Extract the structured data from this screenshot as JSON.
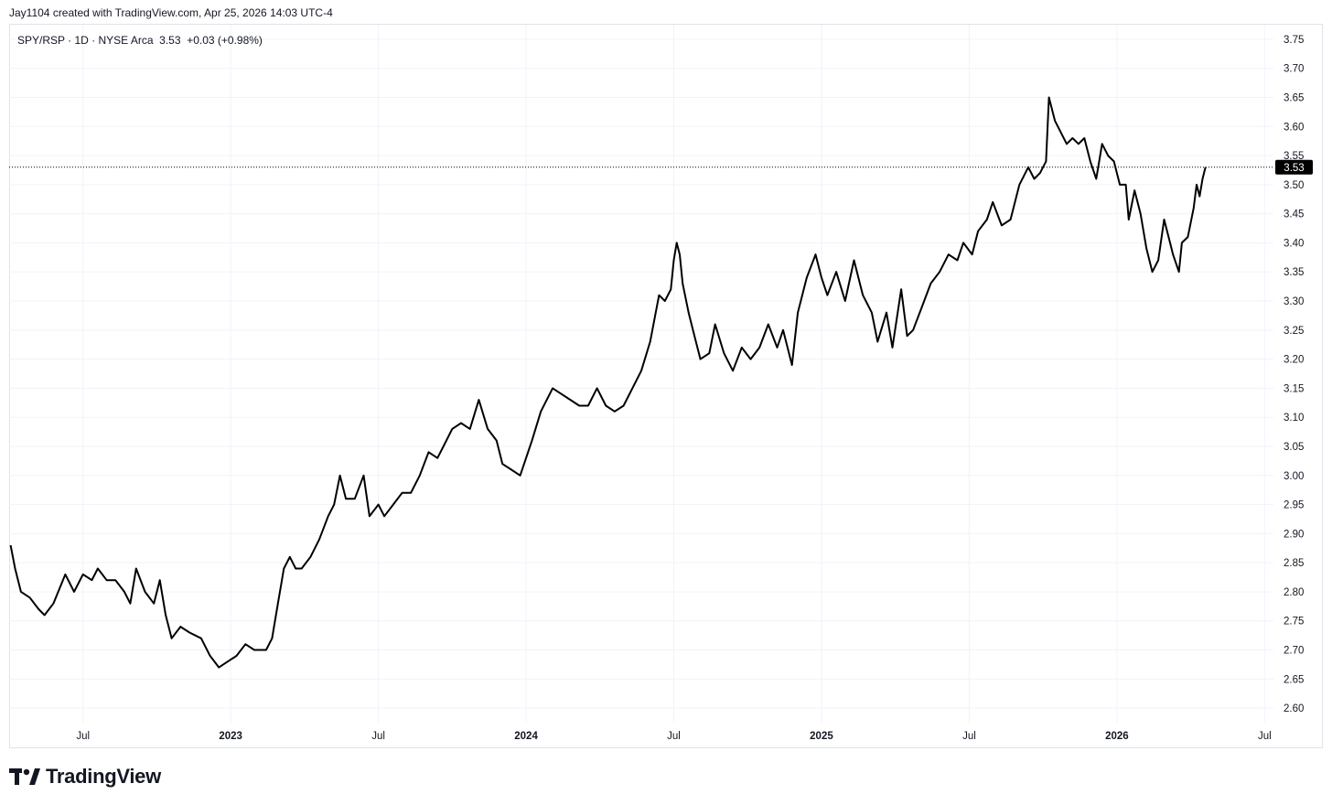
{
  "header": {
    "credit": "Jay1104 created with TradingView.com, Apr 25, 2026 14:03 UTC-4"
  },
  "legend": {
    "symbol": "SPY/RSP · 1D · NYSE Arca",
    "last": "3.53",
    "change": "+0.03 (+0.98%)"
  },
  "brand": {
    "name": "TradingView",
    "logo_icon": "tradingview-logo-icon"
  },
  "colors": {
    "line": "#000000",
    "grid": "#f0f3fa",
    "price_label_bg": "#000000",
    "price_label_text": "#ffffff"
  },
  "chart_data": {
    "type": "line",
    "title": "SPY/RSP · 1D · NYSE Arca",
    "ylim": [
      2.575,
      3.775
    ],
    "y_ticks": [
      "2.60",
      "2.65",
      "2.70",
      "2.75",
      "2.80",
      "2.85",
      "2.90",
      "2.95",
      "3.00",
      "3.05",
      "3.10",
      "3.15",
      "3.20",
      "3.25",
      "3.30",
      "3.35",
      "3.40",
      "3.45",
      "3.50",
      "3.55",
      "3.60",
      "3.65",
      "3.70",
      "3.75"
    ],
    "x_ticks": [
      {
        "label": "Jul",
        "t": 2022.5,
        "major": false
      },
      {
        "label": "2023",
        "t": 2023.0,
        "major": true
      },
      {
        "label": "Jul",
        "t": 2023.5,
        "major": false
      },
      {
        "label": "2024",
        "t": 2024.0,
        "major": true
      },
      {
        "label": "Jul",
        "t": 2024.5,
        "major": false
      },
      {
        "label": "2025",
        "t": 2025.0,
        "major": true
      },
      {
        "label": "Jul",
        "t": 2025.5,
        "major": false
      },
      {
        "label": "2026",
        "t": 2026.0,
        "major": true
      },
      {
        "label": "Jul",
        "t": 2026.5,
        "major": false
      }
    ],
    "xlim": [
      2022.25,
      2026.53
    ],
    "last_value": 3.53,
    "last_value_label": "3.53",
    "grid": true,
    "series": [
      {
        "points": [
          [
            2022.255,
            2.88
          ],
          [
            2022.27,
            2.84
          ],
          [
            2022.29,
            2.8
          ],
          [
            2022.32,
            2.79
          ],
          [
            2022.35,
            2.77
          ],
          [
            2022.37,
            2.76
          ],
          [
            2022.4,
            2.78
          ],
          [
            2022.44,
            2.83
          ],
          [
            2022.47,
            2.8
          ],
          [
            2022.5,
            2.83
          ],
          [
            2022.53,
            2.82
          ],
          [
            2022.55,
            2.84
          ],
          [
            2022.58,
            2.82
          ],
          [
            2022.61,
            2.82
          ],
          [
            2022.64,
            2.8
          ],
          [
            2022.66,
            2.78
          ],
          [
            2022.68,
            2.84
          ],
          [
            2022.71,
            2.8
          ],
          [
            2022.74,
            2.78
          ],
          [
            2022.76,
            2.82
          ],
          [
            2022.78,
            2.76
          ],
          [
            2022.8,
            2.72
          ],
          [
            2022.83,
            2.74
          ],
          [
            2022.86,
            2.73
          ],
          [
            2022.9,
            2.72
          ],
          [
            2022.93,
            2.69
          ],
          [
            2022.96,
            2.67
          ],
          [
            2022.99,
            2.68
          ],
          [
            2023.02,
            2.69
          ],
          [
            2023.05,
            2.71
          ],
          [
            2023.08,
            2.7
          ],
          [
            2023.12,
            2.7
          ],
          [
            2023.14,
            2.72
          ],
          [
            2023.16,
            2.78
          ],
          [
            2023.18,
            2.84
          ],
          [
            2023.2,
            2.86
          ],
          [
            2023.22,
            2.84
          ],
          [
            2023.24,
            2.84
          ],
          [
            2023.27,
            2.86
          ],
          [
            2023.3,
            2.89
          ],
          [
            2023.33,
            2.93
          ],
          [
            2023.35,
            2.95
          ],
          [
            2023.37,
            3.0
          ],
          [
            2023.39,
            2.96
          ],
          [
            2023.42,
            2.96
          ],
          [
            2023.45,
            3.0
          ],
          [
            2023.47,
            2.93
          ],
          [
            2023.5,
            2.95
          ],
          [
            2023.52,
            2.93
          ],
          [
            2023.55,
            2.95
          ],
          [
            2023.58,
            2.97
          ],
          [
            2023.61,
            2.97
          ],
          [
            2023.64,
            3.0
          ],
          [
            2023.67,
            3.04
          ],
          [
            2023.7,
            3.03
          ],
          [
            2023.72,
            3.05
          ],
          [
            2023.75,
            3.08
          ],
          [
            2023.78,
            3.09
          ],
          [
            2023.81,
            3.08
          ],
          [
            2023.84,
            3.13
          ],
          [
            2023.87,
            3.08
          ],
          [
            2023.9,
            3.06
          ],
          [
            2023.92,
            3.02
          ],
          [
            2023.95,
            3.01
          ],
          [
            2023.98,
            3.0
          ],
          [
            2024.02,
            3.06
          ],
          [
            2024.05,
            3.11
          ],
          [
            2024.09,
            3.15
          ],
          [
            2024.12,
            3.14
          ],
          [
            2024.15,
            3.13
          ],
          [
            2024.18,
            3.12
          ],
          [
            2024.21,
            3.12
          ],
          [
            2024.24,
            3.15
          ],
          [
            2024.27,
            3.12
          ],
          [
            2024.3,
            3.11
          ],
          [
            2024.33,
            3.12
          ],
          [
            2024.36,
            3.15
          ],
          [
            2024.39,
            3.18
          ],
          [
            2024.42,
            3.23
          ],
          [
            2024.45,
            3.31
          ],
          [
            2024.47,
            3.3
          ],
          [
            2024.49,
            3.32
          ],
          [
            2024.5,
            3.37
          ],
          [
            2024.51,
            3.4
          ],
          [
            2024.52,
            3.38
          ],
          [
            2024.53,
            3.33
          ],
          [
            2024.55,
            3.28
          ],
          [
            2024.57,
            3.24
          ],
          [
            2024.59,
            3.2
          ],
          [
            2024.62,
            3.21
          ],
          [
            2024.64,
            3.26
          ],
          [
            2024.67,
            3.21
          ],
          [
            2024.7,
            3.18
          ],
          [
            2024.73,
            3.22
          ],
          [
            2024.76,
            3.2
          ],
          [
            2024.79,
            3.22
          ],
          [
            2024.82,
            3.26
          ],
          [
            2024.85,
            3.22
          ],
          [
            2024.87,
            3.25
          ],
          [
            2024.9,
            3.19
          ],
          [
            2024.92,
            3.28
          ],
          [
            2024.95,
            3.34
          ],
          [
            2024.98,
            3.38
          ],
          [
            2025.0,
            3.34
          ],
          [
            2025.02,
            3.31
          ],
          [
            2025.05,
            3.35
          ],
          [
            2025.08,
            3.3
          ],
          [
            2025.11,
            3.37
          ],
          [
            2025.14,
            3.31
          ],
          [
            2025.17,
            3.28
          ],
          [
            2025.19,
            3.23
          ],
          [
            2025.22,
            3.28
          ],
          [
            2025.24,
            3.22
          ],
          [
            2025.27,
            3.32
          ],
          [
            2025.29,
            3.24
          ],
          [
            2025.31,
            3.25
          ],
          [
            2025.34,
            3.29
          ],
          [
            2025.37,
            3.33
          ],
          [
            2025.4,
            3.35
          ],
          [
            2025.43,
            3.38
          ],
          [
            2025.46,
            3.37
          ],
          [
            2025.48,
            3.4
          ],
          [
            2025.51,
            3.38
          ],
          [
            2025.53,
            3.42
          ],
          [
            2025.56,
            3.44
          ],
          [
            2025.58,
            3.47
          ],
          [
            2025.61,
            3.43
          ],
          [
            2025.64,
            3.44
          ],
          [
            2025.67,
            3.5
          ],
          [
            2025.7,
            3.53
          ],
          [
            2025.72,
            3.51
          ],
          [
            2025.74,
            3.52
          ],
          [
            2025.76,
            3.54
          ],
          [
            2025.77,
            3.65
          ],
          [
            2025.79,
            3.61
          ],
          [
            2025.81,
            3.59
          ],
          [
            2025.83,
            3.57
          ],
          [
            2025.85,
            3.58
          ],
          [
            2025.87,
            3.57
          ],
          [
            2025.89,
            3.58
          ],
          [
            2025.91,
            3.54
          ],
          [
            2025.93,
            3.51
          ],
          [
            2025.95,
            3.57
          ],
          [
            2025.97,
            3.55
          ],
          [
            2025.99,
            3.54
          ],
          [
            2026.01,
            3.5
          ],
          [
            2026.03,
            3.5
          ],
          [
            2026.04,
            3.44
          ],
          [
            2026.06,
            3.49
          ],
          [
            2026.08,
            3.45
          ],
          [
            2026.1,
            3.39
          ],
          [
            2026.12,
            3.35
          ],
          [
            2026.14,
            3.37
          ],
          [
            2026.16,
            3.44
          ],
          [
            2026.18,
            3.4
          ],
          [
            2026.19,
            3.38
          ],
          [
            2026.21,
            3.35
          ],
          [
            2026.22,
            3.4
          ],
          [
            2026.24,
            3.41
          ],
          [
            2026.26,
            3.46
          ],
          [
            2026.27,
            3.5
          ],
          [
            2026.28,
            3.48
          ],
          [
            2026.29,
            3.51
          ],
          [
            2026.3,
            3.53
          ]
        ]
      }
    ]
  }
}
